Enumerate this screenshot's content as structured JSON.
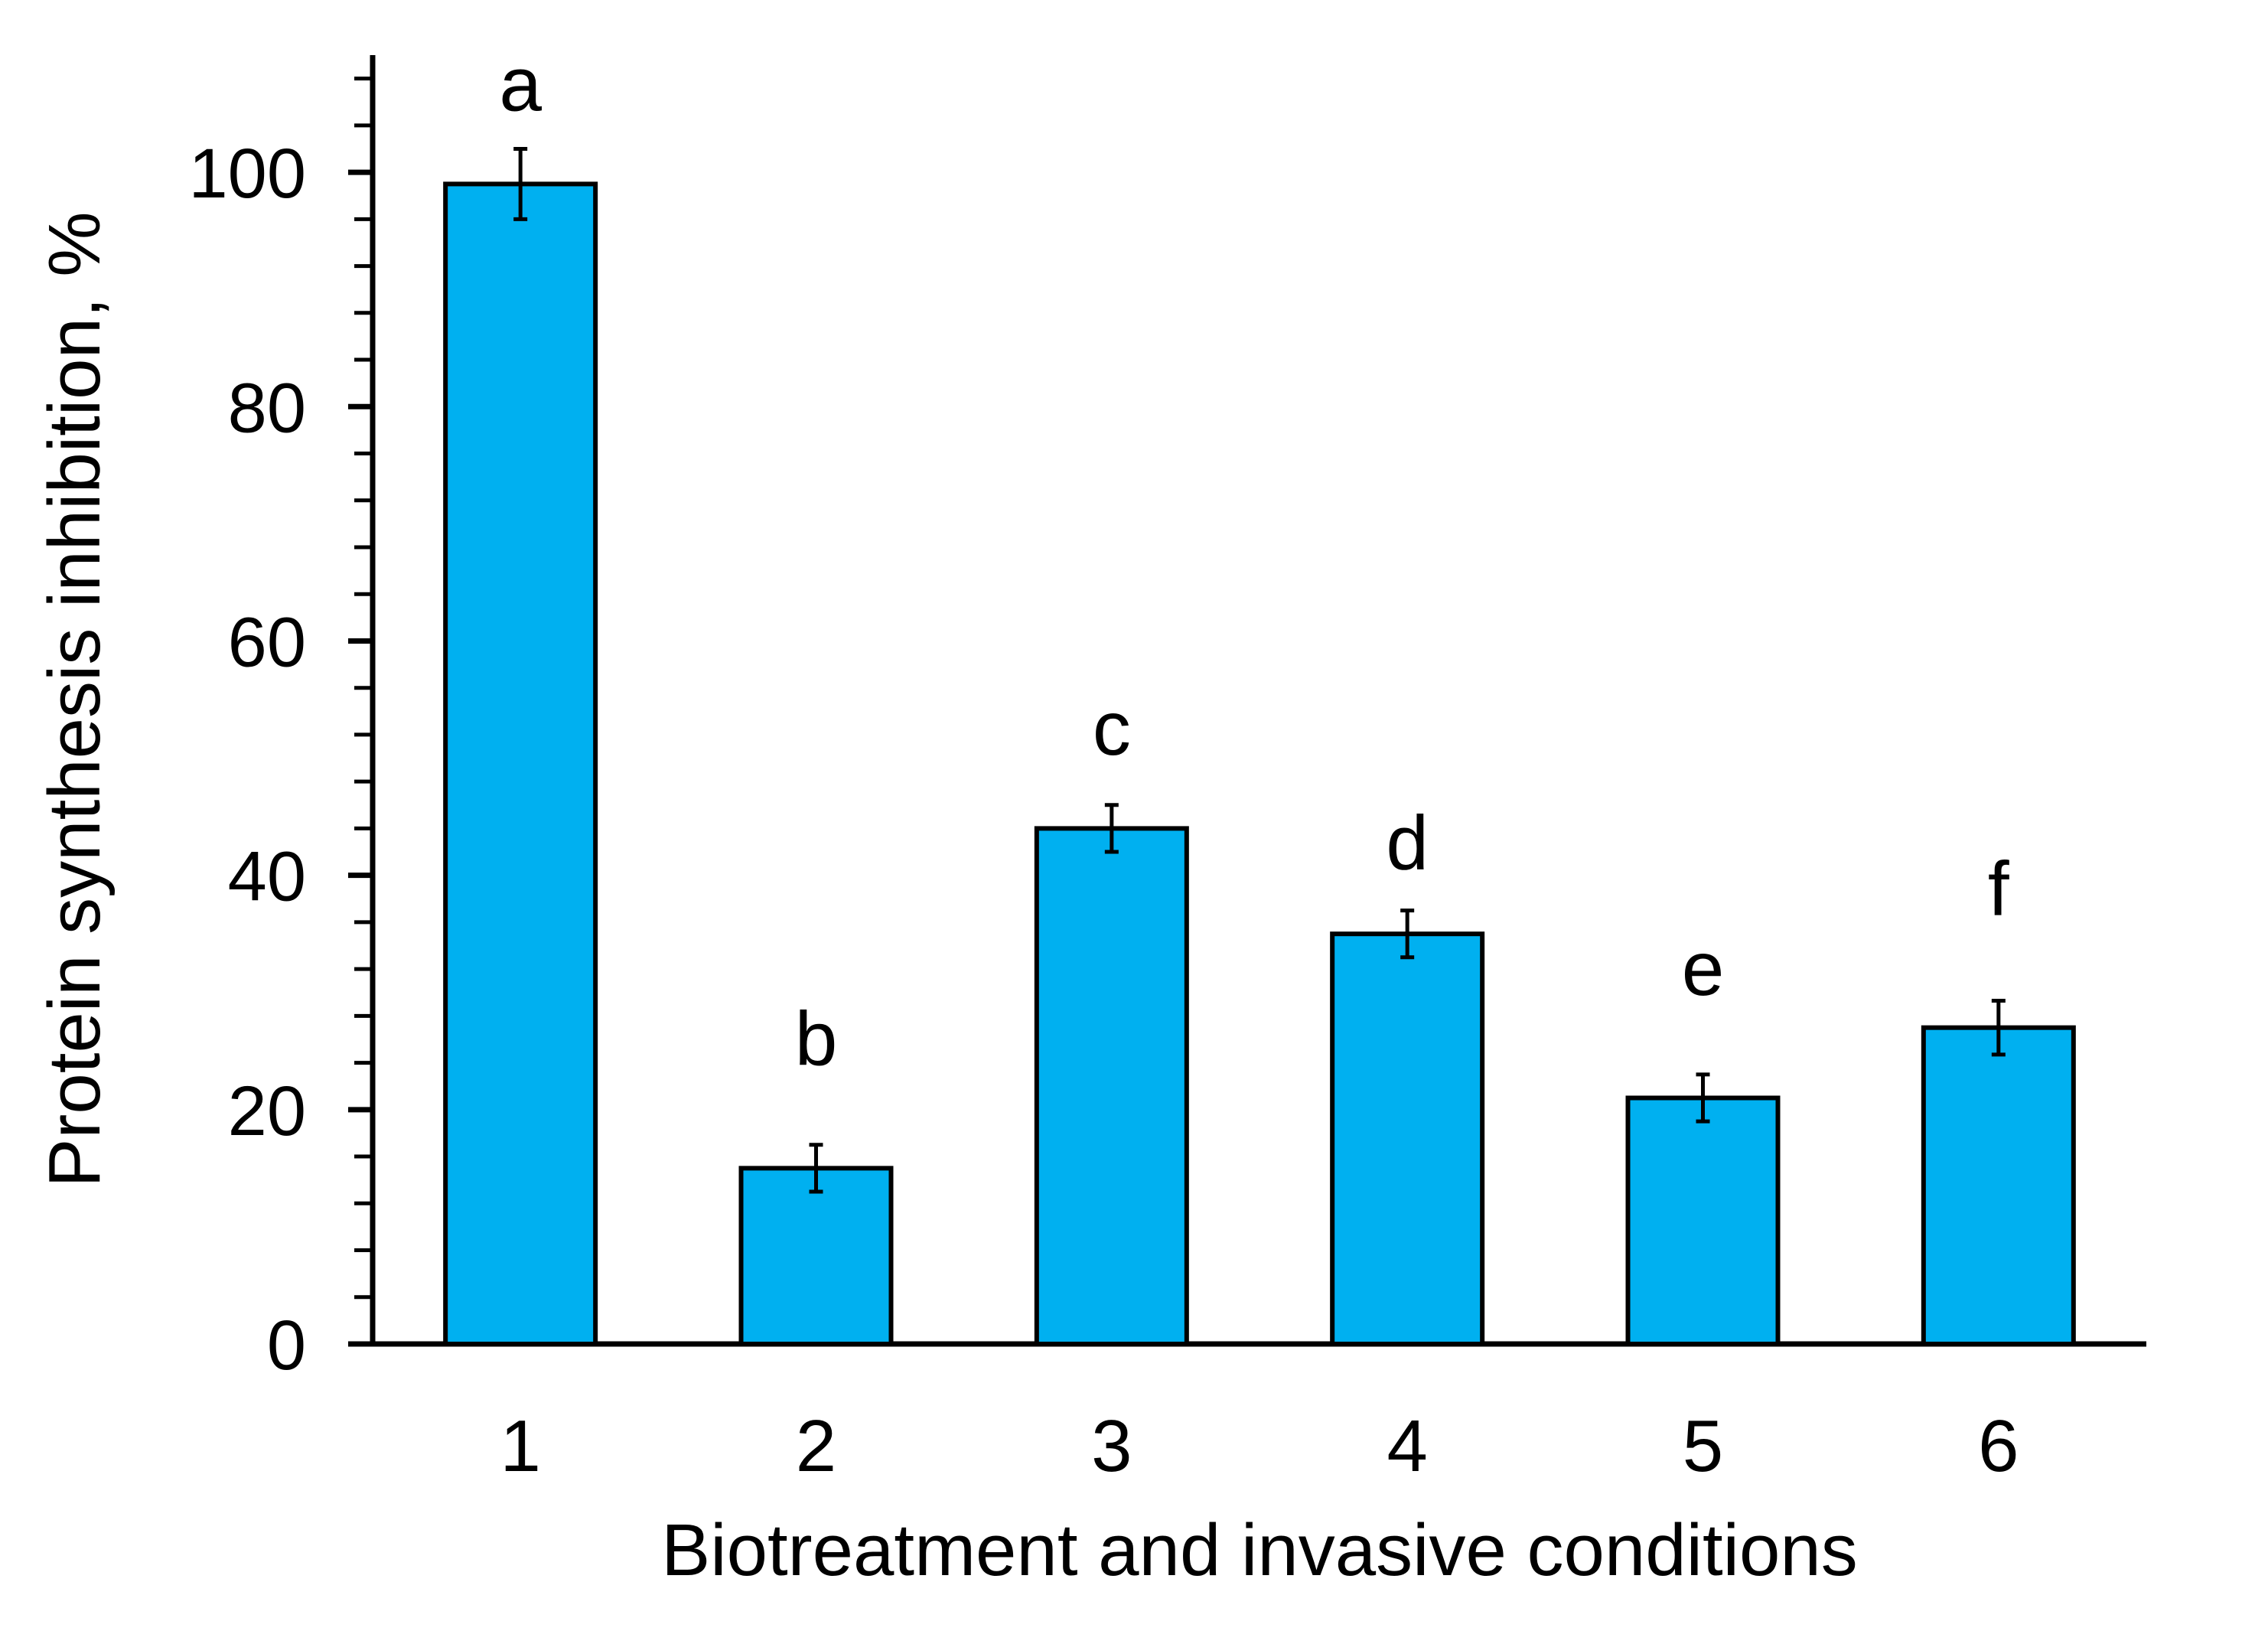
{
  "figure": {
    "background_color": "#ffffff",
    "text_color": "#000000"
  },
  "chart_data": {
    "type": "bar",
    "title": "",
    "xlabel": "Biotreatment and invasive conditions",
    "ylabel": "Protein synthesis inhibition, %",
    "categories": [
      "1",
      "2",
      "3",
      "4",
      "5",
      "6"
    ],
    "series": [
      {
        "name": "Protein synthesis inhibition",
        "values": [
          99,
          15,
          44,
          35,
          21,
          27
        ],
        "error_bars": [
          3,
          2,
          2,
          2,
          2,
          2.3
        ],
        "significance_letters": [
          "a",
          "b",
          "c",
          "d",
          "e",
          "f"
        ]
      }
    ],
    "ylim": [
      0,
      110
    ],
    "y_major_tick_step": 20,
    "y_minor_tick_step": 4,
    "y_tick_labels": [
      "0",
      "20",
      "40",
      "60",
      "80",
      "100"
    ],
    "grid": "off",
    "legend": "none",
    "bar_fill_color": "#00B0F0",
    "bar_border_color": "#000000",
    "axis_color": "#000000"
  }
}
